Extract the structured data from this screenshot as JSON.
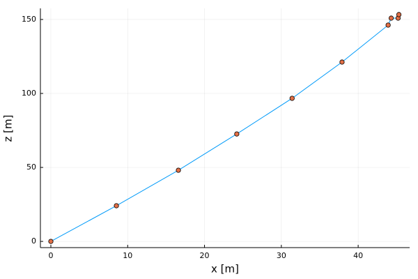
{
  "chart_data": {
    "type": "line",
    "x_label": "x [m]",
    "y_label": "z [m]",
    "x": [
      0,
      8.53,
      16.6,
      24.2,
      31.4,
      37.9,
      43.9,
      44.3,
      45.2,
      45.3
    ],
    "series": [
      {
        "kind": "line",
        "color": "#009af9",
        "values": [
          0,
          24.1,
          48.1,
          72.6,
          96.7,
          121.2,
          146.2,
          150.9,
          150.9,
          153.3
        ]
      },
      {
        "kind": "scatter",
        "color": "#e26f46",
        "values": [
          0,
          24.1,
          48.1,
          72.6,
          96.7,
          121.2,
          146.2,
          150.9,
          150.9,
          153.3
        ]
      }
    ],
    "xlim": [
      -1.36,
      46.7
    ],
    "ylim": [
      -4.2,
      157.5
    ],
    "xticks": [
      0,
      10,
      20,
      30,
      40
    ],
    "yticks": [
      0,
      50,
      100,
      150
    ],
    "grid": true
  }
}
